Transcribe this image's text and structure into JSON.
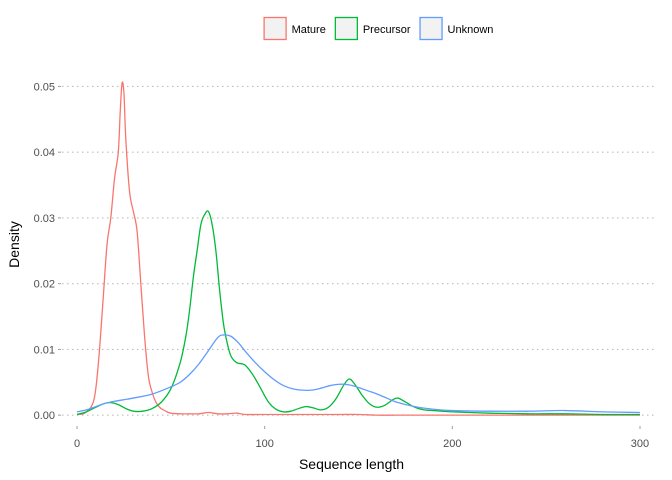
{
  "chart_data": {
    "type": "line",
    "title": "",
    "xlabel": "Sequence length",
    "ylabel": "Density",
    "xlim": [
      -8,
      308
    ],
    "ylim": [
      -0.0015,
      0.0525
    ],
    "x_ticks": [
      0,
      100,
      200,
      300
    ],
    "x_tick_labels": [
      "0",
      "100",
      "200",
      "300"
    ],
    "y_ticks": [
      0,
      0.01,
      0.02,
      0.03,
      0.04,
      0.05
    ],
    "y_tick_labels": [
      "0.00",
      "0.01",
      "0.02",
      "0.03",
      "0.04",
      "0.05"
    ],
    "grid": "dotted horizontal major gridlines",
    "legend_position": "top",
    "series": [
      {
        "name": "Mature",
        "color": "#F8766D",
        "points": [
          [
            0,
            0.0001
          ],
          [
            4,
            0.0003
          ],
          [
            8,
            0.0015
          ],
          [
            10,
            0.004
          ],
          [
            12,
            0.01
          ],
          [
            14,
            0.018
          ],
          [
            16,
            0.026
          ],
          [
            18,
            0.03
          ],
          [
            20,
            0.036
          ],
          [
            22,
            0.04
          ],
          [
            23,
            0.046
          ],
          [
            24,
            0.0505
          ],
          [
            25,
            0.049
          ],
          [
            26,
            0.042
          ],
          [
            28,
            0.034
          ],
          [
            30,
            0.031
          ],
          [
            32,
            0.028
          ],
          [
            34,
            0.02
          ],
          [
            36,
            0.012
          ],
          [
            38,
            0.006
          ],
          [
            40,
            0.0035
          ],
          [
            42,
            0.002
          ],
          [
            44,
            0.0012
          ],
          [
            46,
            0.0008
          ],
          [
            48,
            0.0005
          ],
          [
            50,
            0.0003
          ],
          [
            55,
            0.0002
          ],
          [
            60,
            0.0002
          ],
          [
            65,
            0.0002
          ],
          [
            70,
            0.0004
          ],
          [
            75,
            0.0002
          ],
          [
            80,
            0.0002
          ],
          [
            85,
            0.0003
          ],
          [
            90,
            0.0001
          ],
          [
            100,
            0.0001
          ],
          [
            110,
            0.0001
          ],
          [
            120,
            0.0001
          ],
          [
            130,
            0.0001
          ],
          [
            140,
            0.0001
          ],
          [
            150,
            0.0001
          ],
          [
            160,
            0.0
          ],
          [
            170,
            0.0
          ],
          [
            180,
            0.0
          ],
          [
            200,
            0.0
          ],
          [
            250,
            0.0
          ],
          [
            300,
            0.0
          ]
        ]
      },
      {
        "name": "Precursor",
        "color": "#00BA38",
        "points": [
          [
            0,
            0.0001
          ],
          [
            5,
            0.0005
          ],
          [
            10,
            0.0012
          ],
          [
            15,
            0.0018
          ],
          [
            18,
            0.0019
          ],
          [
            22,
            0.0016
          ],
          [
            26,
            0.001
          ],
          [
            30,
            0.0006
          ],
          [
            35,
            0.0006
          ],
          [
            40,
            0.001
          ],
          [
            45,
            0.002
          ],
          [
            50,
            0.004
          ],
          [
            55,
            0.008
          ],
          [
            58,
            0.012
          ],
          [
            60,
            0.016
          ],
          [
            62,
            0.021
          ],
          [
            64,
            0.025
          ],
          [
            66,
            0.029
          ],
          [
            68,
            0.0305
          ],
          [
            70,
            0.031
          ],
          [
            72,
            0.029
          ],
          [
            74,
            0.025
          ],
          [
            76,
            0.019
          ],
          [
            78,
            0.014
          ],
          [
            80,
            0.011
          ],
          [
            82,
            0.009
          ],
          [
            85,
            0.008
          ],
          [
            88,
            0.0078
          ],
          [
            90,
            0.0075
          ],
          [
            94,
            0.006
          ],
          [
            98,
            0.004
          ],
          [
            102,
            0.002
          ],
          [
            106,
            0.0009
          ],
          [
            110,
            0.0005
          ],
          [
            114,
            0.0006
          ],
          [
            118,
            0.001
          ],
          [
            122,
            0.0013
          ],
          [
            126,
            0.0011
          ],
          [
            130,
            0.0008
          ],
          [
            134,
            0.0012
          ],
          [
            138,
            0.0025
          ],
          [
            142,
            0.0045
          ],
          [
            145,
            0.0055
          ],
          [
            148,
            0.0047
          ],
          [
            152,
            0.003
          ],
          [
            156,
            0.0017
          ],
          [
            160,
            0.0012
          ],
          [
            164,
            0.0015
          ],
          [
            168,
            0.0023
          ],
          [
            171,
            0.0026
          ],
          [
            175,
            0.002
          ],
          [
            180,
            0.0012
          ],
          [
            185,
            0.0008
          ],
          [
            190,
            0.0007
          ],
          [
            195,
            0.0006
          ],
          [
            200,
            0.0005
          ],
          [
            220,
            0.0003
          ],
          [
            240,
            0.0002
          ],
          [
            260,
            0.0002
          ],
          [
            280,
            0.0001
          ],
          [
            300,
            0.0001
          ]
        ]
      },
      {
        "name": "Unknown",
        "color": "#619CFF",
        "points": [
          [
            0,
            0.0005
          ],
          [
            5,
            0.0008
          ],
          [
            10,
            0.0013
          ],
          [
            15,
            0.0018
          ],
          [
            20,
            0.0021
          ],
          [
            30,
            0.0026
          ],
          [
            40,
            0.0032
          ],
          [
            50,
            0.0043
          ],
          [
            55,
            0.005
          ],
          [
            60,
            0.0062
          ],
          [
            65,
            0.0078
          ],
          [
            70,
            0.0098
          ],
          [
            75,
            0.0118
          ],
          [
            78,
            0.0122
          ],
          [
            82,
            0.012
          ],
          [
            86,
            0.011
          ],
          [
            90,
            0.0096
          ],
          [
            95,
            0.008
          ],
          [
            100,
            0.0066
          ],
          [
            105,
            0.0054
          ],
          [
            110,
            0.0045
          ],
          [
            115,
            0.004
          ],
          [
            120,
            0.0038
          ],
          [
            125,
            0.0038
          ],
          [
            130,
            0.0041
          ],
          [
            135,
            0.0045
          ],
          [
            140,
            0.0047
          ],
          [
            145,
            0.0046
          ],
          [
            150,
            0.0042
          ],
          [
            155,
            0.0037
          ],
          [
            160,
            0.0032
          ],
          [
            165,
            0.0026
          ],
          [
            170,
            0.002
          ],
          [
            180,
            0.0013
          ],
          [
            190,
            0.0009
          ],
          [
            200,
            0.0007
          ],
          [
            220,
            0.0006
          ],
          [
            240,
            0.0006
          ],
          [
            260,
            0.0007
          ],
          [
            280,
            0.0005
          ],
          [
            300,
            0.0004
          ]
        ]
      }
    ]
  }
}
